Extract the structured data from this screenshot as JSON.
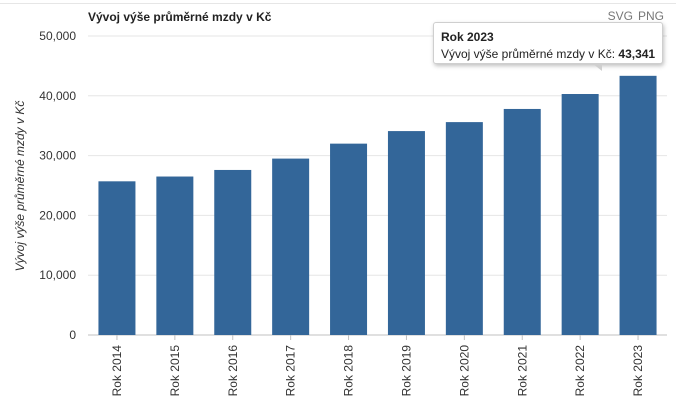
{
  "chart_data": {
    "type": "bar",
    "title": "Vývoj výše průměrné mzdy v Kč",
    "xlabel": "",
    "ylabel": "Vývoj výše průměrné mzdy v Kč",
    "categories": [
      "Rok 2014",
      "Rok 2015",
      "Rok 2016",
      "Rok 2017",
      "Rok 2018",
      "Rok 2019",
      "Rok 2020",
      "Rok 2021",
      "Rok 2022",
      "Rok 2023"
    ],
    "values": [
      25700,
      26500,
      27600,
      29500,
      32000,
      34100,
      35600,
      37800,
      40300,
      43341
    ],
    "ylim": [
      0,
      50000
    ],
    "yticks": [
      "0",
      "10,000",
      "20,000",
      "30,000",
      "40,000",
      "50,000"
    ],
    "ytick_values": [
      0,
      10000,
      20000,
      30000,
      40000,
      50000
    ],
    "grid": true,
    "bar_color": "#336699",
    "grid_color": "#e6e6e6"
  },
  "export": {
    "svg_label": "SVG",
    "png_label": "PNG"
  },
  "tooltip": {
    "title": "Rok 2023",
    "series_label": "Vývoj výše průměrné mzdy v Kč:",
    "value": "43,341"
  }
}
